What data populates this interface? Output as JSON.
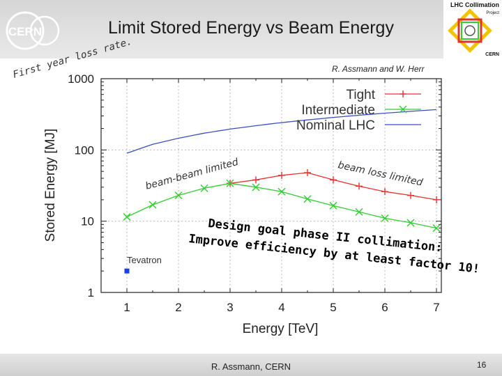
{
  "slide": {
    "title": "Limit Stored Energy vs Beam Energy",
    "author_credit": "R. Assmann and W. Herr",
    "footer": "R. Assmann, CERN",
    "page_number": "16",
    "cern_logo_text": "CERN",
    "lhc_logo_title": "LHC Collimation",
    "lhc_logo_sub": "Project",
    "lhc_logo_org": "CERN"
  },
  "chart_data": {
    "type": "line",
    "xlabel": "Energy [TeV]",
    "ylabel": "Stored Energy [MJ]",
    "xlim": [
      0.5,
      7.2
    ],
    "ylim": [
      1,
      1000
    ],
    "y_scale": "log",
    "x_ticks": [
      "1",
      "2",
      "3",
      "4",
      "5",
      "6",
      "7"
    ],
    "y_ticks": [
      "1",
      "10",
      "100",
      "1000"
    ],
    "legend_position": "top-right",
    "series": [
      {
        "name": "Tight",
        "color": "#e8312f",
        "marker": "plus",
        "x": [
          3.0,
          3.5,
          4.0,
          4.5,
          5.0,
          5.5,
          6.0,
          6.5,
          7.0
        ],
        "y": [
          34,
          38,
          44,
          48,
          38,
          31,
          26,
          23,
          20
        ]
      },
      {
        "name": "Intermediate",
        "color": "#33cc33",
        "marker": "x",
        "x": [
          1.0,
          1.5,
          2.0,
          2.5,
          3.0,
          3.5,
          4.0,
          4.5,
          5.0,
          5.5,
          6.0,
          6.5,
          7.0
        ],
        "y": [
          11.5,
          17,
          23,
          29,
          34,
          30,
          26,
          20.5,
          16.5,
          13.5,
          11,
          9.5,
          8
        ]
      },
      {
        "name": "Nominal LHC",
        "color": "#3a4fc4",
        "marker": "none",
        "x": [
          1.0,
          1.5,
          2.0,
          2.5,
          3.0,
          3.5,
          4.0,
          4.5,
          5.0,
          5.5,
          6.0,
          6.5,
          7.0
        ],
        "y": [
          90,
          120,
          146,
          172,
          196,
          219,
          242,
          264,
          286,
          307,
          328,
          348,
          368
        ]
      },
      {
        "name": "Tevatron",
        "color": "#1b3fe0",
        "marker": "square",
        "x": [
          1.0
        ],
        "y": [
          2.0
        ]
      }
    ],
    "annotations": {
      "first_year": "First year loss rate.",
      "beam_beam": "beam-beam limited",
      "beam_loss": "beam loss limited",
      "goal_line1": "Design goal phase II collimation:",
      "goal_line2": "Improve efficiency by at least factor 10!"
    }
  }
}
